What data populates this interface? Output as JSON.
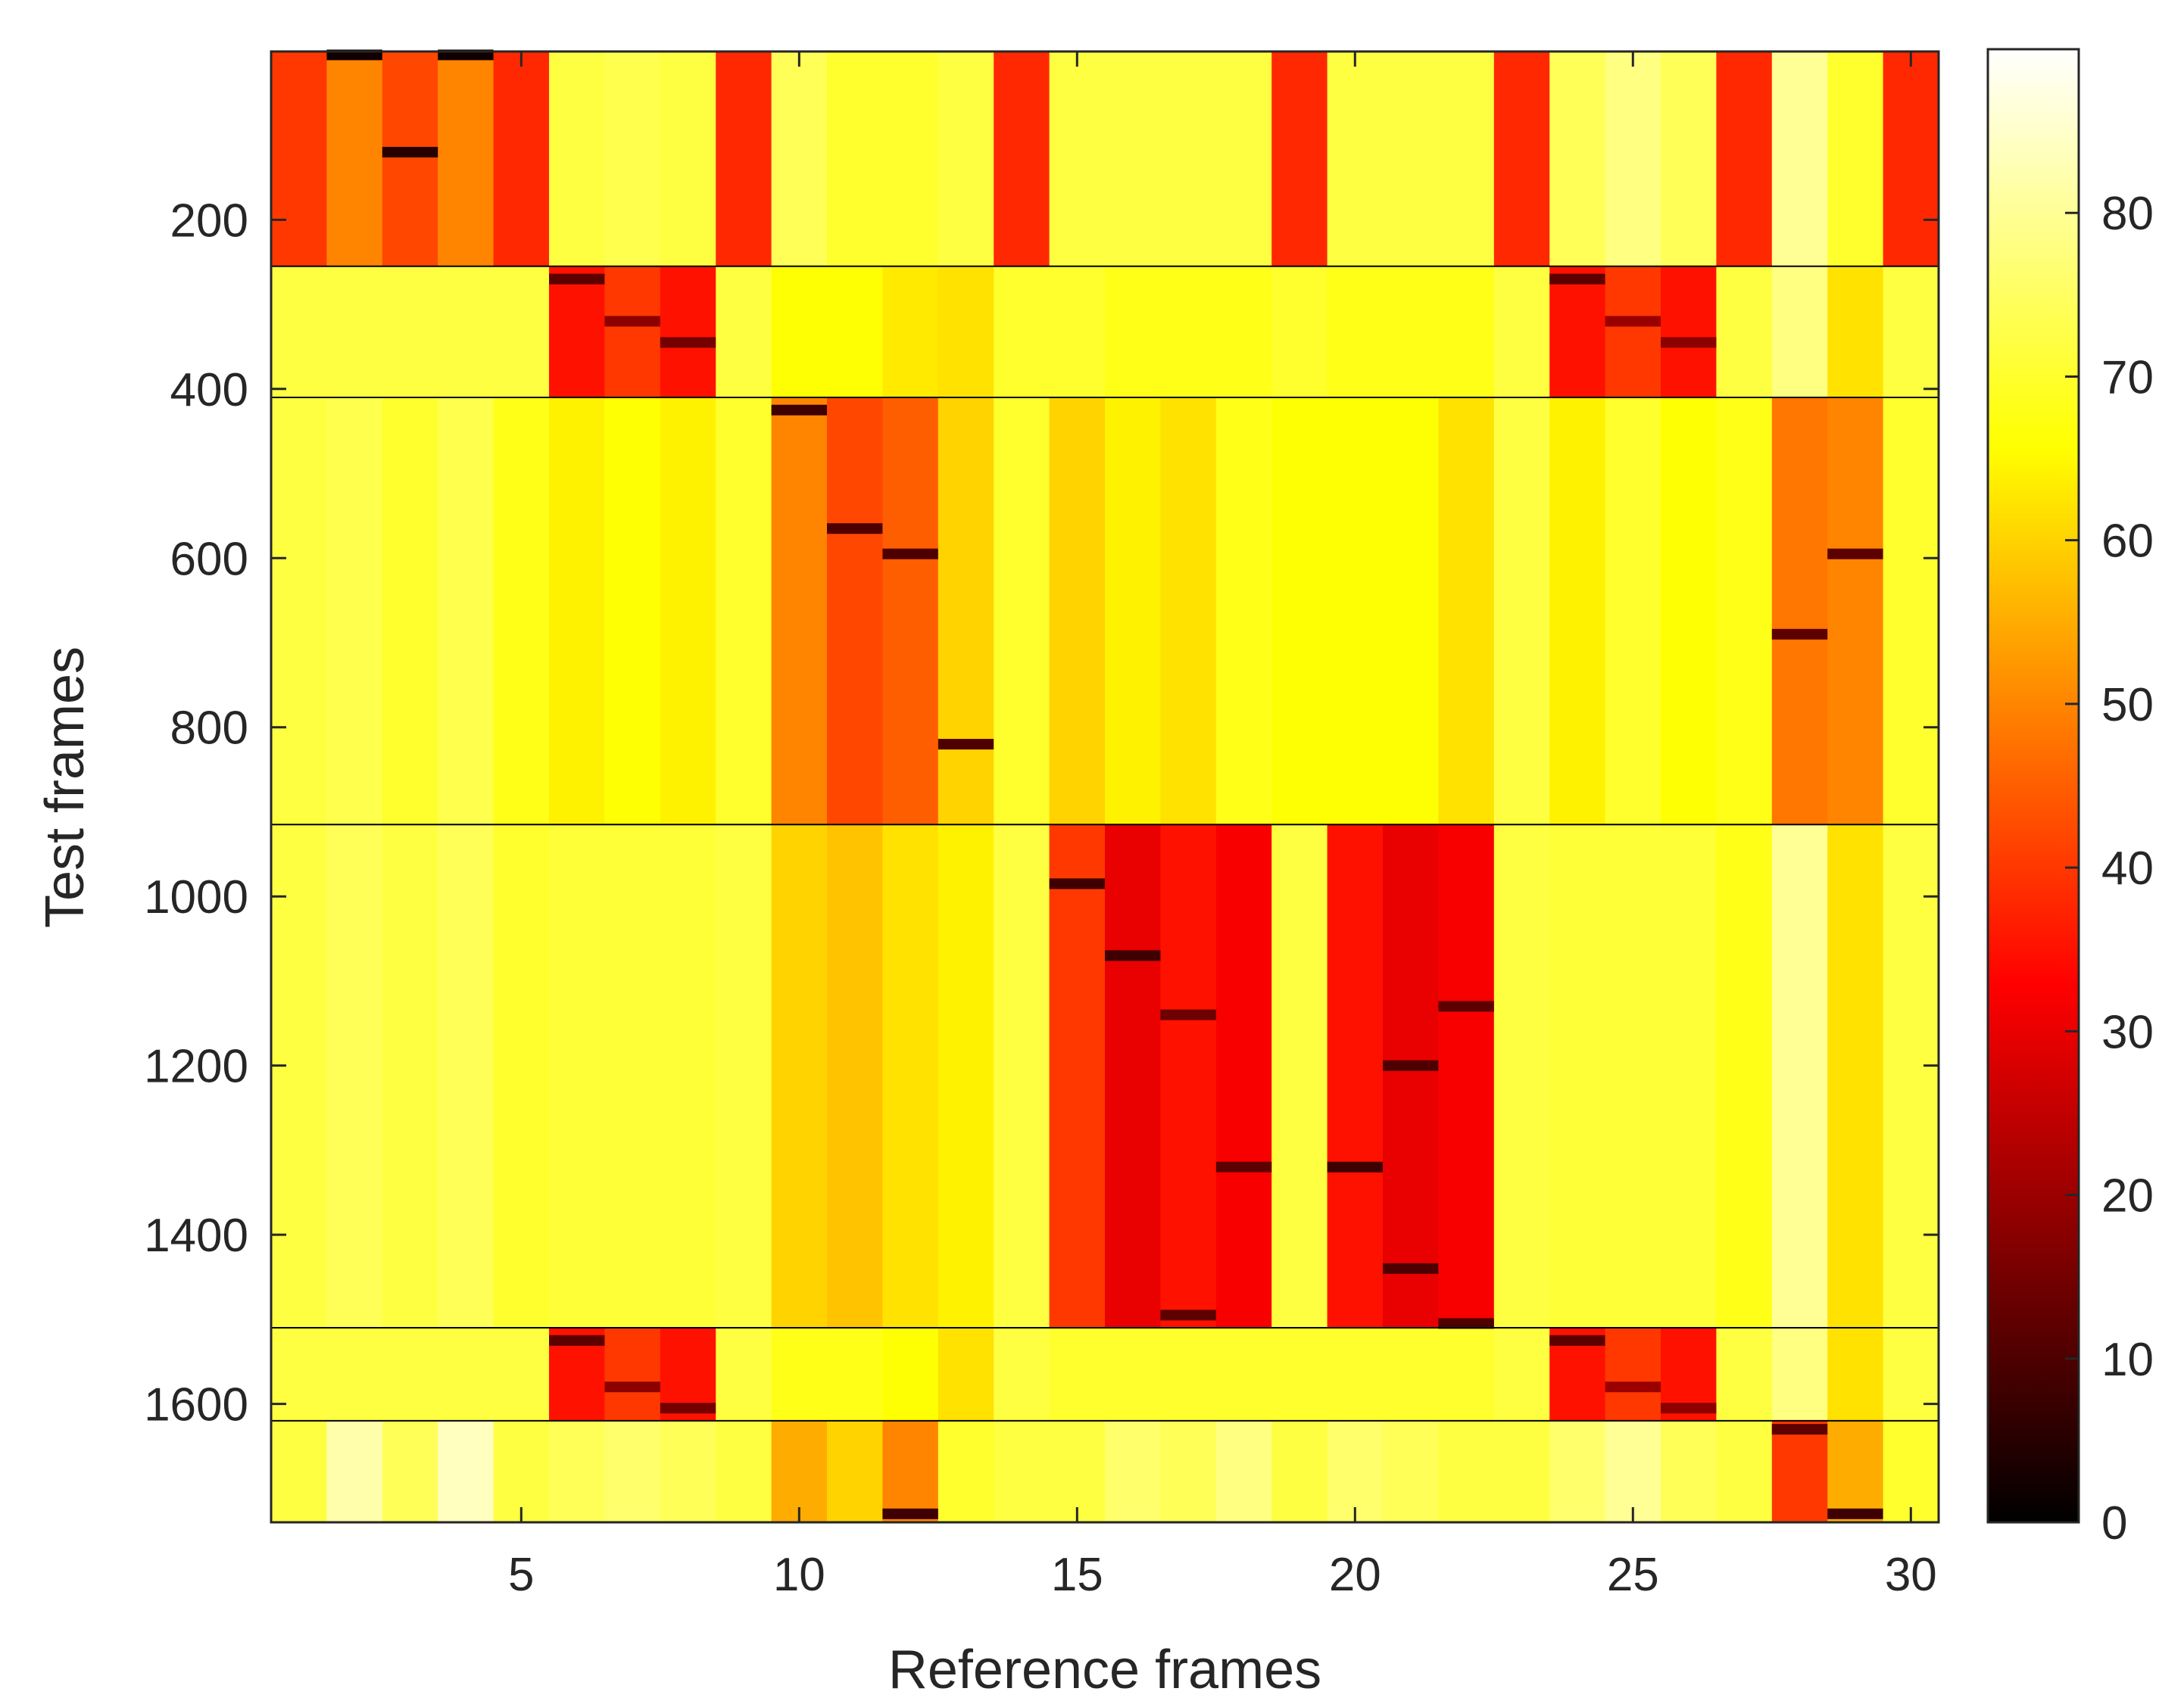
{
  "chart_data": {
    "type": "heatmap",
    "title": "",
    "xlabel": "Reference frames",
    "ylabel": "Test frames",
    "xlim": [
      0.5,
      30.5
    ],
    "ylim": [
      1,
      1740
    ],
    "x_ticks": [
      5,
      10,
      15,
      20,
      25,
      30
    ],
    "x_tick_labels": [
      "5",
      "10",
      "15",
      "20",
      "25",
      "30"
    ],
    "y_ticks": [
      200,
      400,
      600,
      800,
      1000,
      1200,
      1400,
      1600
    ],
    "y_tick_labels": [
      "200",
      "400",
      "600",
      "800",
      "1000",
      "1200",
      "1400",
      "1600"
    ],
    "colorbar": {
      "colormap": "hot",
      "range": [
        0,
        90
      ],
      "ticks": [
        0,
        10,
        20,
        30,
        40,
        50,
        60,
        70,
        80
      ],
      "tick_labels": [
        "0",
        "10",
        "20",
        "30",
        "40",
        "50",
        "60",
        "70",
        "80"
      ]
    },
    "reference_frames": 30,
    "segment_boundaries": [
      1,
      255,
      410,
      915,
      1510,
      1620,
      1740
    ],
    "segments": [
      {
        "test_frames": [
          1,
          255
        ],
        "values": [
          40,
          50,
          42,
          50,
          38,
          72,
          73,
          72,
          38,
          74,
          70,
          70,
          72,
          38,
          72,
          72,
          72,
          72,
          38,
          72,
          72,
          72,
          38,
          74,
          78,
          74,
          38,
          80,
          70,
          38
        ],
        "minima": [
          {
            "ref": 2,
            "test_frame": 5,
            "value": 2
          },
          {
            "ref": 3,
            "test_frame": 120,
            "value": 5
          },
          {
            "ref": 4,
            "test_frame": 5,
            "value": 2
          }
        ]
      },
      {
        "test_frames": [
          255,
          410
        ],
        "values": [
          72,
          72,
          72,
          72,
          72,
          35,
          40,
          35,
          72,
          66,
          66,
          63,
          62,
          70,
          70,
          68,
          68,
          68,
          70,
          68,
          68,
          68,
          72,
          35,
          40,
          35,
          72,
          78,
          62,
          72
        ],
        "minima": [
          {
            "ref": 6,
            "test_frame": 270,
            "value": 12
          },
          {
            "ref": 7,
            "test_frame": 320,
            "value": 18
          },
          {
            "ref": 8,
            "test_frame": 345,
            "value": 15
          },
          {
            "ref": 24,
            "test_frame": 270,
            "value": 12
          },
          {
            "ref": 25,
            "test_frame": 320,
            "value": 20
          },
          {
            "ref": 26,
            "test_frame": 345,
            "value": 18
          }
        ]
      },
      {
        "test_frames": [
          410,
          915
        ],
        "values": [
          72,
          73,
          70,
          73,
          68,
          64,
          66,
          64,
          70,
          50,
          42,
          45,
          60,
          70,
          60,
          64,
          62,
          68,
          66,
          66,
          66,
          62,
          72,
          64,
          70,
          66,
          68,
          48,
          50,
          70
        ],
        "minima": [
          {
            "ref": 10,
            "test_frame": 425,
            "value": 8
          },
          {
            "ref": 11,
            "test_frame": 565,
            "value": 10
          },
          {
            "ref": 12,
            "test_frame": 595,
            "value": 10
          },
          {
            "ref": 13,
            "test_frame": 820,
            "value": 10
          },
          {
            "ref": 28,
            "test_frame": 690,
            "value": 12
          },
          {
            "ref": 29,
            "test_frame": 595,
            "value": 12
          }
        ]
      },
      {
        "test_frames": [
          915,
          1510
        ],
        "values": [
          72,
          74,
          72,
          74,
          70,
          71,
          71,
          71,
          72,
          60,
          58,
          62,
          64,
          72,
          40,
          30,
          35,
          32,
          72,
          35,
          30,
          32,
          72,
          71,
          71,
          71,
          68,
          80,
          62,
          72
        ],
        "minima": [
          {
            "ref": 15,
            "test_frame": 985,
            "value": 8
          },
          {
            "ref": 16,
            "test_frame": 1070,
            "value": 8
          },
          {
            "ref": 17,
            "test_frame": 1140,
            "value": 14
          },
          {
            "ref": 17,
            "test_frame": 1495,
            "value": 12
          },
          {
            "ref": 18,
            "test_frame": 1320,
            "value": 12
          },
          {
            "ref": 20,
            "test_frame": 1320,
            "value": 8
          },
          {
            "ref": 21,
            "test_frame": 1200,
            "value": 10
          },
          {
            "ref": 21,
            "test_frame": 1440,
            "value": 10
          },
          {
            "ref": 22,
            "test_frame": 1130,
            "value": 12
          },
          {
            "ref": 22,
            "test_frame": 1505,
            "value": 10
          }
        ]
      },
      {
        "test_frames": [
          1510,
          1620
        ],
        "values": [
          72,
          72,
          72,
          72,
          72,
          35,
          40,
          35,
          72,
          68,
          68,
          66,
          62,
          72,
          70,
          70,
          70,
          70,
          70,
          70,
          70,
          70,
          72,
          35,
          40,
          35,
          72,
          78,
          62,
          72
        ],
        "minima": [
          {
            "ref": 6,
            "test_frame": 1525,
            "value": 12
          },
          {
            "ref": 7,
            "test_frame": 1580,
            "value": 18
          },
          {
            "ref": 8,
            "test_frame": 1605,
            "value": 15
          },
          {
            "ref": 24,
            "test_frame": 1525,
            "value": 12
          },
          {
            "ref": 25,
            "test_frame": 1580,
            "value": 20
          },
          {
            "ref": 26,
            "test_frame": 1605,
            "value": 18
          }
        ]
      },
      {
        "test_frames": [
          1620,
          1740
        ],
        "values": [
          72,
          82,
          74,
          84,
          72,
          74,
          76,
          74,
          72,
          55,
          60,
          50,
          70,
          72,
          72,
          76,
          74,
          78,
          72,
          76,
          74,
          72,
          72,
          76,
          80,
          74,
          72,
          40,
          55,
          70
        ],
        "minima": [
          {
            "ref": 12,
            "test_frame": 1730,
            "value": 8
          },
          {
            "ref": 28,
            "test_frame": 1630,
            "value": 12
          },
          {
            "ref": 29,
            "test_frame": 1730,
            "value": 8
          }
        ]
      }
    ]
  }
}
